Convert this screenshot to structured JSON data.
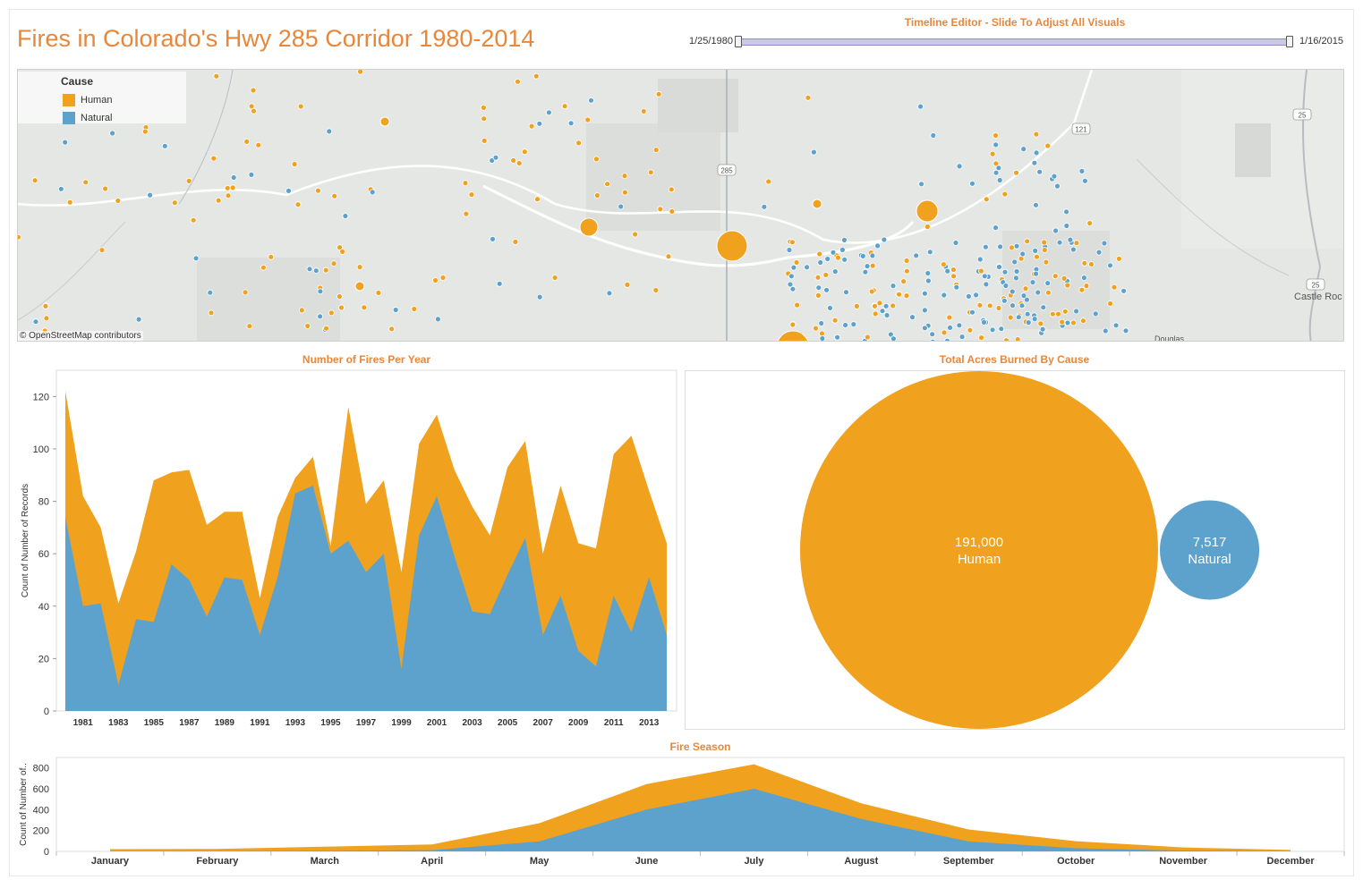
{
  "title": "Fires in Colorado's Hwy 285 Corridor 1980-2014",
  "timeline": {
    "title": "Timeline Editor - Slide To Adjust All Visuals",
    "start": "1/25/1980",
    "end": "1/16/2015"
  },
  "colors": {
    "human": "#f0a11e",
    "natural": "#5ca2cc",
    "accent": "#e8873a"
  },
  "map": {
    "legend_title": "Cause",
    "legend_items": [
      {
        "label": "Human",
        "color": "#f0a11e"
      },
      {
        "label": "Natural",
        "color": "#5ca2cc"
      }
    ],
    "attribution": "© OpenStreetMap contributors",
    "towns": [
      "Castle Roc",
      "Douglas"
    ],
    "road_shields": [
      "285",
      "121",
      "25",
      "25"
    ]
  },
  "chart_data": [
    {
      "type": "area",
      "title": "Number of Fires Per Year",
      "ylabel": "Count of Number of Records",
      "ylim": [
        0,
        130
      ],
      "yticks": [
        0,
        20,
        40,
        60,
        80,
        100,
        120
      ],
      "x": [
        1980,
        1981,
        1982,
        1983,
        1984,
        1985,
        1986,
        1987,
        1988,
        1989,
        1990,
        1991,
        1992,
        1993,
        1994,
        1995,
        1996,
        1997,
        1998,
        1999,
        2000,
        2001,
        2002,
        2003,
        2004,
        2005,
        2006,
        2007,
        2008,
        2009,
        2010,
        2011,
        2012,
        2013,
        2014
      ],
      "xtick_labels": [
        "1981",
        "1983",
        "1985",
        "1987",
        "1989",
        "1991",
        "1993",
        "1995",
        "1997",
        "1999",
        "2001",
        "2003",
        "2005",
        "2007",
        "2009",
        "2011",
        "2013"
      ],
      "series": [
        {
          "name": "Natural",
          "values": [
            74,
            40,
            41,
            10,
            35,
            34,
            56,
            50,
            36,
            51,
            50,
            29,
            51,
            83,
            86,
            60,
            65,
            53,
            60,
            16,
            67,
            82,
            59,
            38,
            37,
            52,
            66,
            29,
            44,
            23,
            17,
            44,
            30,
            51,
            29
          ]
        },
        {
          "name": "Human",
          "values": [
            48,
            42,
            29,
            31,
            26,
            54,
            35,
            42,
            35,
            25,
            26,
            14,
            23,
            6,
            11,
            3,
            51,
            26,
            28,
            37,
            35,
            31,
            33,
            40,
            30,
            41,
            37,
            31,
            42,
            41,
            45,
            54,
            75,
            33,
            35
          ]
        }
      ],
      "stacked": true
    },
    {
      "type": "bubble",
      "title": "Total Acres Burned By Cause",
      "categories": [
        "Human",
        "Natural"
      ],
      "values": [
        191000,
        7517
      ],
      "value_labels": [
        "191,000",
        "7,517"
      ]
    },
    {
      "type": "area",
      "title": "Fire Season",
      "ylabel": "Count of Number of..",
      "ylim": [
        0,
        900
      ],
      "yticks": [
        0,
        200,
        400,
        600,
        800
      ],
      "categories": [
        "January",
        "February",
        "March",
        "April",
        "May",
        "June",
        "July",
        "August",
        "September",
        "October",
        "November",
        "December"
      ],
      "series": [
        {
          "name": "Natural",
          "values": [
            1,
            2,
            5,
            12,
            95,
            400,
            600,
            310,
            95,
            30,
            8,
            2
          ]
        },
        {
          "name": "Human",
          "values": [
            20,
            22,
            40,
            55,
            175,
            245,
            235,
            150,
            115,
            68,
            30,
            12
          ]
        }
      ],
      "stacked": true
    }
  ]
}
